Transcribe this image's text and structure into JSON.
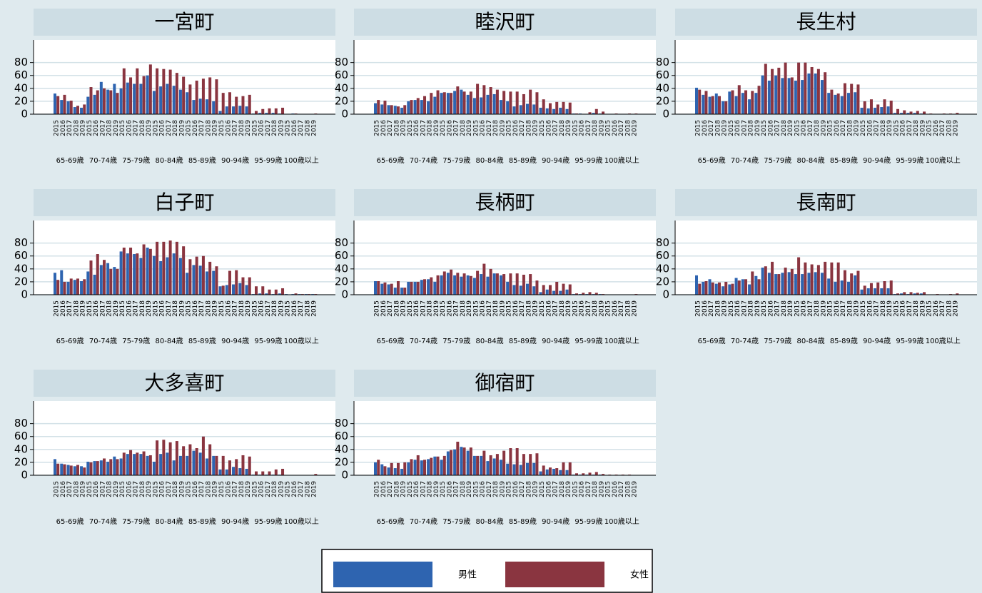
{
  "chart_data": [
    {
      "type": "bar",
      "title": "一宮町",
      "series": [
        {
          "values": [
            [
              32,
              22,
              20,
              11,
              10
            ],
            [
              27,
              30,
              50,
              38,
              47
            ],
            [
              40,
              49,
              47,
              47,
              60
            ],
            [
              36,
              43,
              47,
              44,
              38
            ],
            [
              34,
              22,
              24,
              23,
              20
            ],
            [
              5,
              12,
              12,
              13,
              12
            ],
            [
              1,
              2,
              2,
              2,
              1
            ],
            [
              0,
              1,
              0,
              0,
              0
            ]
          ]
        },
        {
          "values": [
            [
              28,
              30,
              21,
              13,
              15
            ],
            [
              42,
              37,
              40,
              37,
              33
            ],
            [
              71,
              57,
              71,
              59,
              77
            ],
            [
              71,
              70,
              69,
              64,
              58
            ],
            [
              46,
              52,
              55,
              57,
              54
            ],
            [
              33,
              34,
              27,
              28,
              30
            ],
            [
              5,
              8,
              9,
              9,
              10
            ],
            [
              0,
              1,
              0,
              0,
              1
            ]
          ]
        }
      ]
    },
    {
      "type": "bar",
      "title": "睦沢町",
      "series": [
        {
          "values": [
            [
              17,
              15,
              14,
              13,
              10
            ],
            [
              20,
              22,
              22,
              20,
              27
            ],
            [
              33,
              33,
              36,
              38,
              30
            ],
            [
              25,
              26,
              30,
              31,
              22
            ],
            [
              20,
              12,
              14,
              16,
              15
            ],
            [
              10,
              9,
              8,
              10,
              8
            ],
            [
              1,
              1,
              0,
              2,
              1
            ],
            [
              0,
              0,
              0,
              0,
              0
            ]
          ]
        },
        {
          "values": [
            [
              22,
              21,
              14,
              12,
              14
            ],
            [
              22,
              25,
              28,
              33,
              37
            ],
            [
              34,
              33,
              43,
              35,
              35
            ],
            [
              47,
              45,
              42,
              38,
              36
            ],
            [
              35,
              35,
              31,
              38,
              34
            ],
            [
              23,
              17,
              19,
              19,
              18
            ],
            [
              1,
              0,
              3,
              8,
              4
            ],
            [
              0,
              1,
              0,
              1,
              1
            ]
          ]
        }
      ]
    },
    {
      "type": "bar",
      "title": "長生村",
      "series": [
        {
          "values": [
            [
              41,
              30,
              27,
              32,
              20
            ],
            [
              35,
              28,
              33,
              23,
              33
            ],
            [
              60,
              52,
              60,
              56,
              56
            ],
            [
              52,
              53,
              63,
              63,
              53
            ],
            [
              33,
              30,
              28,
              33,
              34
            ],
            [
              10,
              9,
              10,
              11,
              12
            ],
            [
              2,
              2,
              2,
              2,
              1
            ],
            [
              0,
              0,
              0,
              0,
              0
            ]
          ]
        },
        {
          "values": [
            [
              38,
              36,
              28,
              28,
              20
            ],
            [
              37,
              45,
              37,
              36,
              44
            ],
            [
              78,
              70,
              72,
              80,
              57
            ],
            [
              80,
              80,
              73,
              70,
              65
            ],
            [
              38,
              32,
              48,
              47,
              46
            ],
            [
              20,
              23,
              15,
              23,
              21
            ],
            [
              8,
              6,
              4,
              5,
              4
            ],
            [
              1,
              0,
              1,
              1,
              2
            ]
          ]
        }
      ]
    },
    {
      "type": "bar",
      "title": "白子町",
      "series": [
        {
          "values": [
            [
              34,
              38,
              20,
              23,
              21
            ],
            [
              36,
              31,
              46,
              49,
              43
            ],
            [
              67,
              64,
              63,
              57,
              73
            ],
            [
              60,
              52,
              58,
              64,
              57
            ],
            [
              34,
              46,
              45,
              36,
              37
            ],
            [
              13,
              15,
              16,
              18,
              15
            ],
            [
              1,
              2,
              2,
              1,
              2
            ],
            [
              1,
              1,
              1,
              1,
              1
            ]
          ]
        },
        {
          "values": [
            [
              23,
              20,
              25,
              25,
              24
            ],
            [
              53,
              63,
              54,
              40,
              40
            ],
            [
              73,
              73,
              64,
              78,
              71
            ],
            [
              82,
              82,
              84,
              82,
              75
            ],
            [
              55,
              59,
              60,
              51,
              44
            ],
            [
              14,
              37,
              38,
              27,
              27
            ],
            [
              13,
              13,
              8,
              8,
              10
            ],
            [
              0,
              2,
              1,
              1,
              1
            ]
          ]
        }
      ]
    },
    {
      "type": "bar",
      "title": "長柄町",
      "series": [
        {
          "values": [
            [
              21,
              17,
              16,
              11,
              11
            ],
            [
              20,
              20,
              23,
              24,
              20
            ],
            [
              30,
              34,
              30,
              28,
              30
            ],
            [
              26,
              32,
              28,
              33,
              30
            ],
            [
              20,
              15,
              14,
              17,
              13
            ],
            [
              4,
              8,
              6,
              6,
              8
            ],
            [
              1,
              1,
              1,
              1,
              1
            ],
            [
              0,
              0,
              0,
              0,
              0
            ]
          ]
        },
        {
          "values": [
            [
              21,
              19,
              17,
              21,
              11
            ],
            [
              20,
              20,
              24,
              27,
              30
            ],
            [
              36,
              39,
              34,
              33,
              29
            ],
            [
              37,
              48,
              40,
              33,
              32
            ],
            [
              33,
              33,
              31,
              32,
              22
            ],
            [
              15,
              15,
              20,
              17,
              16
            ],
            [
              2,
              3,
              4,
              3,
              1
            ],
            [
              0,
              0,
              0,
              0,
              1
            ]
          ]
        }
      ]
    },
    {
      "type": "bar",
      "title": "長南町",
      "series": [
        {
          "values": [
            [
              30,
              20,
              24,
              17,
              13
            ],
            [
              16,
              26,
              24,
              16,
              29
            ],
            [
              42,
              34,
              32,
              34,
              35
            ],
            [
              32,
              32,
              34,
              35,
              34
            ],
            [
              25,
              20,
              22,
              20,
              30
            ],
            [
              8,
              10,
              10,
              10,
              10
            ],
            [
              1,
              2,
              1,
              2,
              2
            ],
            [
              0,
              0,
              0,
              0,
              0
            ]
          ]
        },
        {
          "values": [
            [
              17,
              21,
              19,
              19,
              20
            ],
            [
              17,
              22,
              24,
              36,
              24
            ],
            [
              44,
              51,
              32,
              42,
              40
            ],
            [
              58,
              50,
              47,
              46,
              51
            ],
            [
              50,
              50,
              38,
              33,
              37
            ],
            [
              14,
              18,
              19,
              21,
              22
            ],
            [
              2,
              4,
              4,
              3,
              4
            ],
            [
              0,
              1,
              0,
              1,
              2
            ]
          ]
        }
      ]
    },
    {
      "type": "bar",
      "title": "大多喜町",
      "series": [
        {
          "values": [
            [
              25,
              18,
              16,
              14,
              14
            ],
            [
              21,
              22,
              23,
              21,
              29
            ],
            [
              26,
              33,
              33,
              33,
              30
            ],
            [
              21,
              33,
              35,
              23,
              30
            ],
            [
              30,
              38,
              35,
              26,
              30
            ],
            [
              9,
              9,
              13,
              11,
              10
            ],
            [
              1,
              1,
              1,
              1,
              1
            ],
            [
              0,
              0,
              0,
              0,
              0
            ]
          ]
        },
        {
          "values": [
            [
              18,
              17,
              15,
              16,
              12
            ],
            [
              20,
              22,
              26,
              25,
              25
            ],
            [
              35,
              39,
              35,
              37,
              31
            ],
            [
              54,
              55,
              51,
              53,
              45
            ],
            [
              48,
              42,
              60,
              48,
              30
            ],
            [
              30,
              23,
              25,
              31,
              29
            ],
            [
              6,
              6,
              6,
              9,
              10
            ],
            [
              0,
              0,
              0,
              0,
              2
            ]
          ]
        }
      ]
    },
    {
      "type": "bar",
      "title": "御宿町",
      "series": [
        {
          "values": [
            [
              20,
              17,
              12,
              11,
              10
            ],
            [
              20,
              24,
              23,
              25,
              29
            ],
            [
              24,
              37,
              40,
              44,
              38
            ],
            [
              30,
              30,
              22,
              26,
              24
            ],
            [
              18,
              17,
              16,
              19,
              19
            ],
            [
              6,
              9,
              10,
              8,
              8
            ],
            [
              1,
              1,
              1,
              1,
              1
            ],
            [
              0,
              0,
              0,
              0,
              0
            ]
          ]
        },
        {
          "values": [
            [
              24,
              14,
              19,
              19,
              20
            ],
            [
              25,
              31,
              24,
              27,
              29
            ],
            [
              30,
              39,
              52,
              43,
              43
            ],
            [
              30,
              38,
              31,
              33,
              38
            ],
            [
              42,
              42,
              33,
              33,
              34
            ],
            [
              15,
              12,
              11,
              20,
              20
            ],
            [
              3,
              3,
              4,
              5,
              2
            ],
            [
              1,
              1,
              1,
              1,
              0
            ]
          ]
        }
      ]
    }
  ],
  "groups": [
    "65-69歳",
    "70-74歳",
    "75-79歳",
    "80-84歳",
    "85-89歳",
    "90-94歳",
    "95-99歳",
    "100歳以上"
  ],
  "years": [
    2015,
    2016,
    2017,
    2018,
    2019
  ],
  "ylim": [
    0,
    115
  ],
  "yticks": [
    0,
    20,
    40,
    60,
    80
  ],
  "grid": true,
  "legend": [
    {
      "name": "男性",
      "color": "#2e64b0"
    },
    {
      "name": "女性",
      "color": "#8a3540"
    }
  ]
}
